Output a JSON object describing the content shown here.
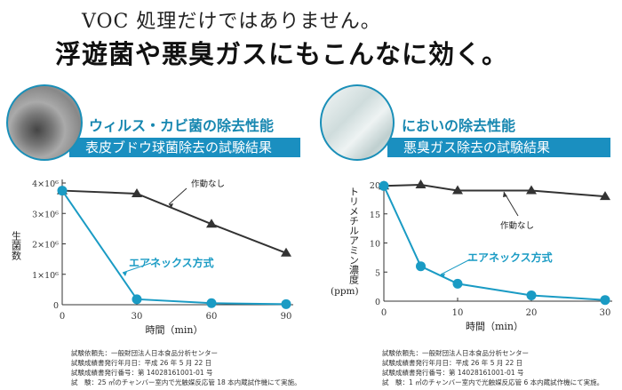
{
  "headline": {
    "line1": "VOC 処理だけではありません。",
    "line2": "浮遊菌や悪臭ガスにもこんなに効く。"
  },
  "colors": {
    "accent": "#1a8fc0",
    "control": "#333333",
    "treated": "#1a9bc4"
  },
  "panels": [
    {
      "icon": "virus-image",
      "subtitle": "ウィルス・カビ菌の除去性能",
      "bar_title": "表皮ブドウ球菌除去の試験結果",
      "notes": [
        "試験依頼先：一般財団法人日本食品分析センター",
        "試験成績書発行年月日：平成 26 年 5 月 22 日",
        "試験成績書発行番号：第 14028161001-01 号",
        "試　験：25 ㎥のチャンバー室内で光触媒反応管 18 本内蔵試作機にて実施。"
      ]
    },
    {
      "icon": "smoke-image",
      "subtitle": "においの除去性能",
      "bar_title": "悪臭ガス除去の試験結果",
      "notes": [
        "試験依頼先：一般財団法人日本食品分析センター",
        "試験成績書発行年月日：平成 26 年 5 月 22 日",
        "試験成績書発行番号：第 14028161001-01 号",
        "試　験：1 ㎥のチャンバー室内で光触媒反応管 6 本内蔵試作機にて実施。"
      ]
    }
  ],
  "chart_data": [
    {
      "type": "line",
      "xlabel": "時間（min）",
      "ylabel": "生菌数",
      "xlim": [
        0,
        90
      ],
      "ylim": [
        0,
        4000000
      ],
      "xticks": [
        "0",
        "30",
        "60",
        "90"
      ],
      "yticks": [
        "0",
        "1×10⁶",
        "2×10⁶",
        "3×10⁶",
        "4×10⁶"
      ],
      "x": [
        0,
        30,
        60,
        90
      ],
      "series": [
        {
          "name": "作動なし",
          "marker": "triangle",
          "values": [
            3750000,
            3650000,
            2650000,
            1700000
          ]
        },
        {
          "name": "エアネックス方式",
          "marker": "circle",
          "values": [
            3750000,
            180000,
            50000,
            20000
          ]
        }
      ]
    },
    {
      "type": "line",
      "xlabel": "時間（min）",
      "ylabel": "トリメチルアミン濃度",
      "yunit": "(ppm)",
      "xlim": [
        0,
        30
      ],
      "ylim": [
        0,
        20
      ],
      "xticks": [
        "0",
        "10",
        "20",
        "30"
      ],
      "yticks": [
        "0",
        "5",
        "10",
        "15",
        "20"
      ],
      "series": [
        {
          "name": "作動なし",
          "marker": "triangle",
          "x": [
            0,
            5,
            10,
            20,
            30
          ],
          "values": [
            19.8,
            20,
            19,
            19,
            18
          ]
        },
        {
          "name": "エアネックス方式",
          "marker": "circle",
          "x": [
            0,
            5,
            10,
            20,
            30
          ],
          "values": [
            19.8,
            6,
            3,
            1,
            0.2
          ]
        }
      ]
    }
  ]
}
